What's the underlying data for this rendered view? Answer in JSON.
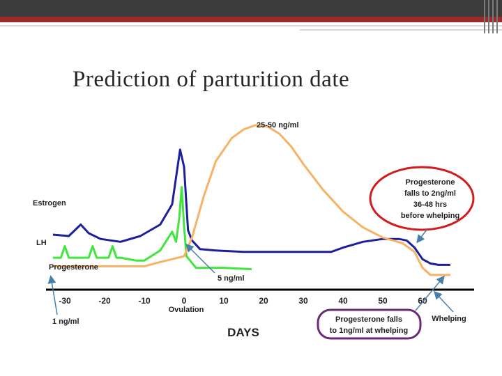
{
  "title": "Prediction of parturition date",
  "colors": {
    "estrogen": "#1b1f9a",
    "lh": "#3ee63e",
    "progesterone": "#f7b267",
    "axis": "#000000",
    "annotation_red": "#d21b1b",
    "annotation_purple": "#6a2a7a",
    "arrow": "#4a7fa8"
  },
  "chart_data": {
    "type": "line",
    "xlabel": "DAYS",
    "ylabel": "",
    "xlim": [
      -33,
      67
    ],
    "x_ticks": [
      -30,
      -20,
      -10,
      0,
      10,
      20,
      30,
      40,
      50,
      60
    ],
    "x_tick_labels": [
      "-30",
      "-20",
      "-10",
      "0",
      "10",
      "20",
      "30",
      "40",
      "50",
      "60"
    ],
    "grid": false,
    "series": [
      {
        "name": "Estrogen",
        "color": "#1b1f9a",
        "x": [
          -33,
          -29,
          -26,
          -24,
          -21,
          -16,
          -11,
          -6,
          -3,
          -1,
          0,
          1,
          2,
          4,
          8,
          15,
          25,
          35,
          37,
          40,
          45,
          50,
          54,
          56,
          58,
          60,
          62,
          64,
          67
        ],
        "y": [
          2.9,
          2.8,
          3.6,
          3.0,
          2.6,
          2.4,
          2.8,
          3.6,
          5.0,
          8.8,
          7.6,
          3.2,
          2.5,
          1.9,
          1.8,
          1.7,
          1.7,
          1.7,
          1.7,
          2.0,
          2.4,
          2.6,
          2.6,
          2.5,
          2.0,
          1.2,
          0.9,
          0.8,
          0.8
        ]
      },
      {
        "name": "LH",
        "color": "#3ee63e",
        "x": [
          -33,
          -31,
          -30,
          -29,
          -28,
          -24,
          -23,
          -22,
          -21,
          -19,
          -18,
          -17,
          -16,
          -12,
          -10,
          -6,
          -3,
          -2,
          -1.2,
          -0.6,
          0,
          0.6,
          1.5,
          3,
          10,
          17
        ],
        "y": [
          1.3,
          1.3,
          2.1,
          1.3,
          1.3,
          1.3,
          2.1,
          1.3,
          1.3,
          1.3,
          2.1,
          1.3,
          1.3,
          1.1,
          1.1,
          1.8,
          3.1,
          2.4,
          4.1,
          6.2,
          3.5,
          1.4,
          1.1,
          0.6,
          0.6,
          0.5
        ]
      },
      {
        "name": "Progesterone",
        "color": "#f7b267",
        "x": [
          -33,
          -20,
          -10,
          -6,
          -3,
          0,
          2,
          5,
          8,
          12,
          15,
          18,
          21,
          24,
          27,
          30,
          35,
          40,
          45,
          50,
          55,
          58,
          60,
          62,
          67
        ],
        "y": [
          0.7,
          0.7,
          0.7,
          1.0,
          1.2,
          1.4,
          2.7,
          5.6,
          8.0,
          9.6,
          10.2,
          10.5,
          10.4,
          9.9,
          9.0,
          7.8,
          6.0,
          4.5,
          3.4,
          2.7,
          2.3,
          1.7,
          0.6,
          0.1,
          0.1
        ]
      }
    ],
    "series_labels": [
      "Estrogen",
      "LH",
      "Progesterone"
    ],
    "annotations": {
      "peak": "25-50 ng/ml",
      "five": "5 ng/ml",
      "one": "1 ng/ml",
      "ovulation": "Ovulation",
      "red_box": [
        "Progesterone",
        "falls to 2ng/ml",
        "36-48 hrs",
        "before whelping"
      ],
      "purple_box": [
        "Progesterone falls",
        "to 1ng/ml at whelping"
      ],
      "whelping": "Whelping"
    }
  }
}
